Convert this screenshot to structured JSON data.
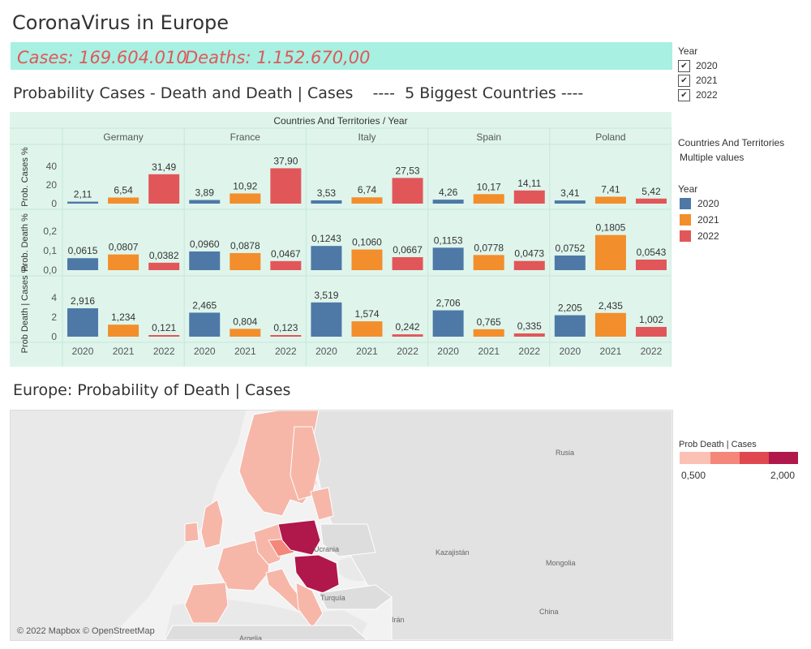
{
  "title": "CoronaVirus in Europe",
  "banner": {
    "cases": "Cases: 169.604.010",
    "deaths": "Deaths: 1.152.670,00"
  },
  "subtitle": "Probability Cases - Death and Death | Cases    ----  5 Biggest Countries ----",
  "map_title": "Europe: Probability of Death | Cases",
  "filters": {
    "year_label": "Year",
    "years": [
      {
        "label": "2020",
        "checked": true
      },
      {
        "label": "2021",
        "checked": true
      },
      {
        "label": "2022",
        "checked": true
      }
    ],
    "countries_label": "Countries And Territories",
    "countries_value": "Multiple values"
  },
  "legend": {
    "title": "Year",
    "items": [
      {
        "label": "2020",
        "color": "#4e79a7"
      },
      {
        "label": "2021",
        "color": "#f28e2b"
      },
      {
        "label": "2022",
        "color": "#e15759"
      }
    ]
  },
  "color_scale": {
    "title": "Prob Death | Cases",
    "min_label": "0,500",
    "max_label": "2,000",
    "colors": [
      "#fcc1b5",
      "#f4877a",
      "#e0484f",
      "#b0174a"
    ]
  },
  "map": {
    "copyright": "© 2022 Mapbox © OpenStreetMap",
    "place_labels": [
      "Rusia",
      "Ucrania",
      "Kazajistán",
      "Mongolia",
      "Turquía",
      "Irán",
      "China",
      "Argelia"
    ]
  },
  "chart_data": {
    "type": "bar",
    "header": "Countries And Territories  /  Year",
    "countries": [
      "Germany",
      "France",
      "Italy",
      "Spain",
      "Poland"
    ],
    "years": [
      "2020",
      "2021",
      "2022"
    ],
    "rows": [
      {
        "label": "Prob. Cases %",
        "ticks": [
          "40",
          "20",
          "0"
        ],
        "ylim": [
          0,
          40
        ],
        "values": [
          [
            2.11,
            6.54,
            31.49
          ],
          [
            3.89,
            10.92,
            37.9
          ],
          [
            3.53,
            6.74,
            27.53
          ],
          [
            4.26,
            10.17,
            14.11
          ],
          [
            3.41,
            7.41,
            5.42
          ]
        ],
        "labels": [
          [
            "2,11",
            "6,54",
            "31,49"
          ],
          [
            "3,89",
            "10,92",
            "37,90"
          ],
          [
            "3,53",
            "6,74",
            "27,53"
          ],
          [
            "4,26",
            "10,17",
            "14,11"
          ],
          [
            "3,41",
            "7,41",
            "5,42"
          ]
        ]
      },
      {
        "label": "Prob. Death %",
        "ticks": [
          "0,2",
          "0,1",
          "0,0"
        ],
        "ylim": [
          0,
          0.2
        ],
        "values": [
          [
            0.0615,
            0.0807,
            0.0382
          ],
          [
            0.096,
            0.0878,
            0.0467
          ],
          [
            0.1243,
            0.106,
            0.0667
          ],
          [
            0.1153,
            0.0778,
            0.0473
          ],
          [
            0.0752,
            0.1805,
            0.0543
          ]
        ],
        "labels": [
          [
            "0,0615",
            "0,0807",
            "0,0382"
          ],
          [
            "0,0960",
            "0,0878",
            "0,0467"
          ],
          [
            "0,1243",
            "0,1060",
            "0,0667"
          ],
          [
            "0,1153",
            "0,0778",
            "0,0473"
          ],
          [
            "0,0752",
            "0,1805",
            "0,0543"
          ]
        ]
      },
      {
        "label": "Prob Death | Cases %",
        "ticks": [
          "4",
          "2",
          "0"
        ],
        "ylim": [
          0,
          4
        ],
        "values": [
          [
            2.916,
            1.234,
            0.121
          ],
          [
            2.465,
            0.804,
            0.123
          ],
          [
            3.519,
            1.574,
            0.242
          ],
          [
            2.706,
            0.765,
            0.335
          ],
          [
            2.205,
            2.435,
            1.002
          ]
        ],
        "labels": [
          [
            "2,916",
            "1,234",
            "0,121"
          ],
          [
            "2,465",
            "0,804",
            "0,123"
          ],
          [
            "3,519",
            "1,574",
            "0,242"
          ],
          [
            "2,706",
            "0,765",
            "0,335"
          ],
          [
            "2,205",
            "2,435",
            "1,002"
          ]
        ]
      }
    ],
    "colors": [
      "#4e79a7",
      "#f28e2b",
      "#e15759"
    ],
    "grid": true,
    "legend": "right"
  }
}
